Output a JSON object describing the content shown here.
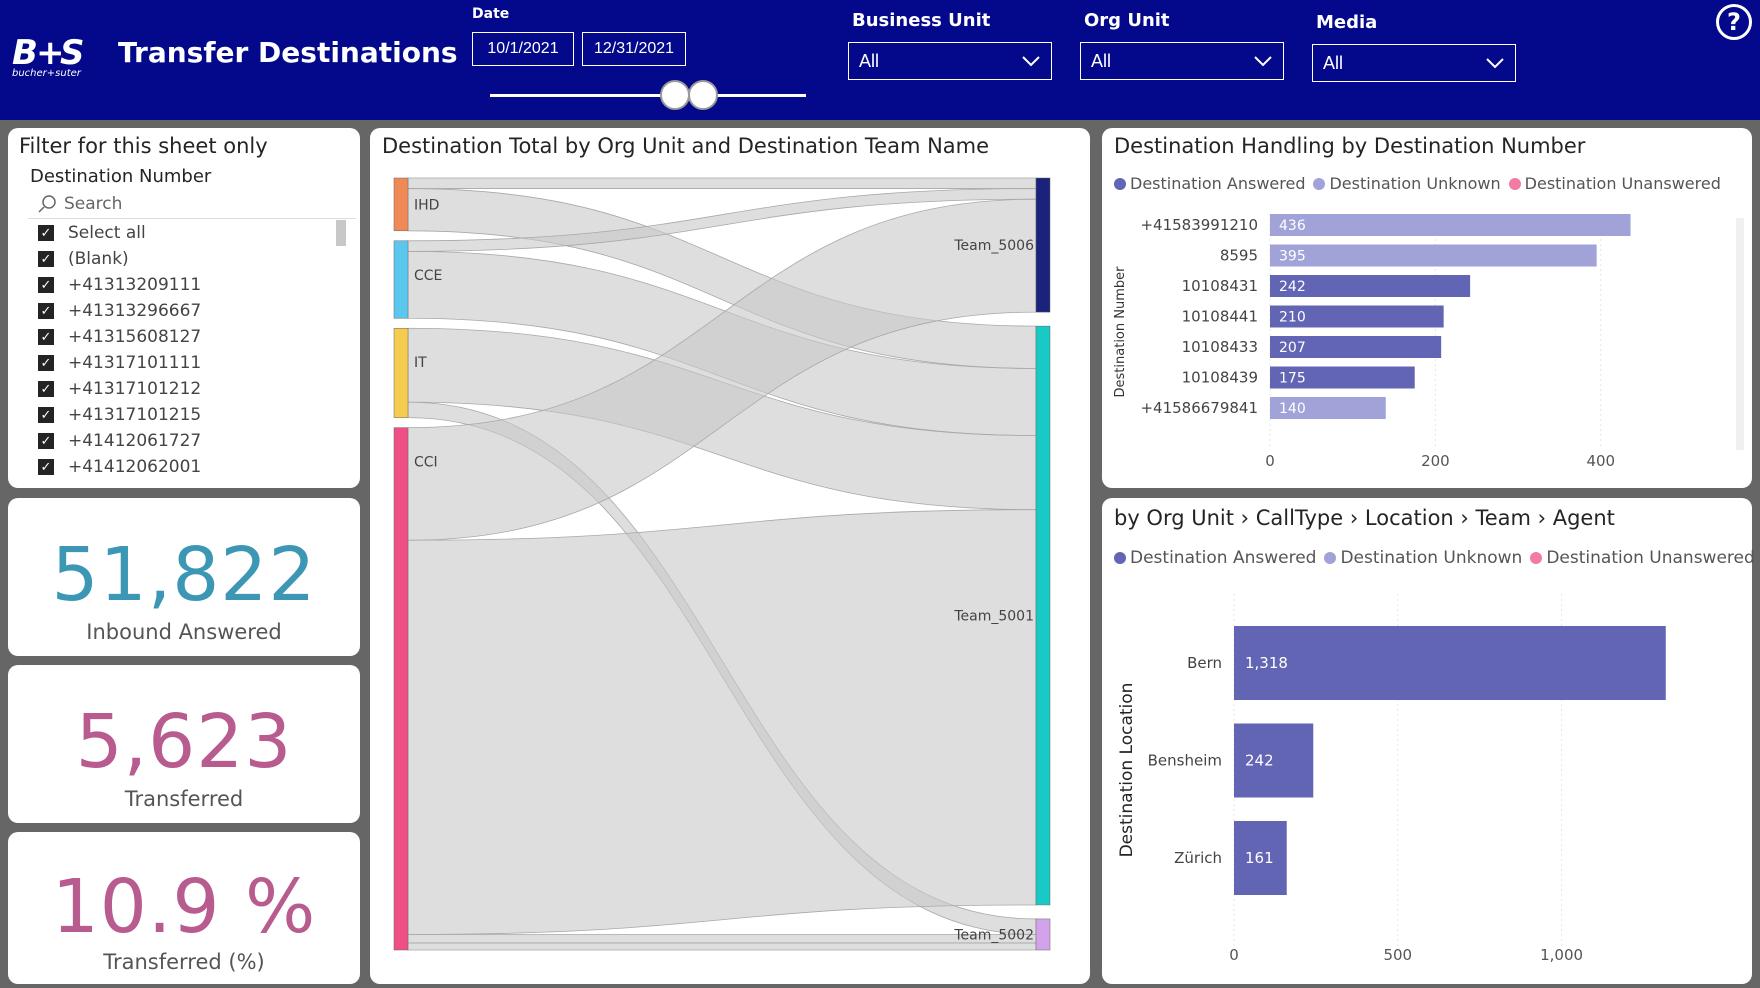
{
  "header": {
    "logo_text": "bucher+suter",
    "title": "Transfer Destinations",
    "help_label": "?",
    "date_label": "Date",
    "date_start": "10/1/2021",
    "date_end": "12/31/2021",
    "business_unit": {
      "label": "Business Unit",
      "value": "All"
    },
    "org_unit": {
      "label": "Org Unit",
      "value": "All"
    },
    "media": {
      "label": "Media",
      "value": "All"
    }
  },
  "filter_panel": {
    "title": "Filter for this sheet only",
    "field": "Destination Number",
    "search_placeholder": "Search",
    "items": [
      "Select all",
      "(Blank)",
      "+41313209111",
      "+41313296667",
      "+41315608127",
      "+41317101111",
      "+41317101212",
      "+41317101215",
      "+41412061727",
      "+41412062001"
    ]
  },
  "kpis": [
    {
      "value": "51,822",
      "label": "Inbound Answered",
      "color": "#3c97b5"
    },
    {
      "value": "5,623",
      "label": "Transferred",
      "color": "#b85b8e"
    },
    {
      "value": "10.9 %",
      "label": "Transferred (%)",
      "color": "#b85b8e"
    }
  ],
  "legend": {
    "answered": "Destination Answered",
    "unknown": "Destination Unknown",
    "unanswered": "Destination Unanswered"
  },
  "colors": {
    "header": "#03098a",
    "answered": "#6264b4",
    "unknown": "#a0a2d8",
    "unanswered": "#f27aa3"
  },
  "chart_data": [
    {
      "type": "sankey",
      "title": "Destination Total by Org Unit and Destination Team Name",
      "sources": [
        {
          "name": "IHD",
          "color": "#ef8a56"
        },
        {
          "name": "CCE",
          "color": "#5bc7ef"
        },
        {
          "name": "IT",
          "color": "#f5cc4e"
        },
        {
          "name": "CCI",
          "color": "#ee4f86"
        }
      ],
      "targets": [
        {
          "name": "Team_5006",
          "color": "#1a227b"
        },
        {
          "name": "Team_5001",
          "color": "#18c9c6"
        },
        {
          "name": "Team_5002",
          "color": "#d2a3ea"
        }
      ],
      "flows": [
        {
          "source": "IHD",
          "target": "Team_5006",
          "value": 15
        },
        {
          "source": "IHD",
          "target": "Team_5001",
          "value": 60
        },
        {
          "source": "CCE",
          "target": "Team_5006",
          "value": 15
        },
        {
          "source": "CCE",
          "target": "Team_5001",
          "value": 95
        },
        {
          "source": "IT",
          "target": "Team_5001",
          "value": 105
        },
        {
          "source": "IT",
          "target": "Team_5002",
          "value": 22
        },
        {
          "source": "CCI",
          "target": "Team_5006",
          "value": 160
        },
        {
          "source": "CCI",
          "target": "Team_5001",
          "value": 560
        },
        {
          "source": "CCI",
          "target": "Team_5002",
          "value": 12
        },
        {
          "source": "CCI",
          "target": "Team_5002",
          "value": 10
        }
      ]
    },
    {
      "type": "bar",
      "orientation": "horizontal",
      "title": "Destination Handling by Destination Number",
      "ylabel": "Destination Number",
      "categories": [
        "+41583991210",
        "8595",
        "10108431",
        "10108441",
        "10108433",
        "10108439",
        "+41586679841"
      ],
      "values": [
        436,
        395,
        242,
        210,
        207,
        175,
        140
      ],
      "series_type": [
        "unknown",
        "unknown",
        "answered",
        "answered",
        "answered",
        "answered",
        "unknown"
      ],
      "xticks": [
        "0",
        "200",
        "400"
      ],
      "xlim": [
        0,
        520
      ]
    },
    {
      "type": "bar",
      "orientation": "horizontal",
      "title": "by Org Unit › CallType › Location › Team › Agent",
      "ylabel": "Destination Location",
      "categories": [
        "Bern",
        "Bensheim",
        "Zürich"
      ],
      "values": [
        1318,
        242,
        161
      ],
      "labels": [
        "1,318",
        "242",
        "161"
      ],
      "xticks": [
        "0",
        "500",
        "1,000"
      ],
      "xlim": [
        0,
        1450
      ]
    }
  ]
}
